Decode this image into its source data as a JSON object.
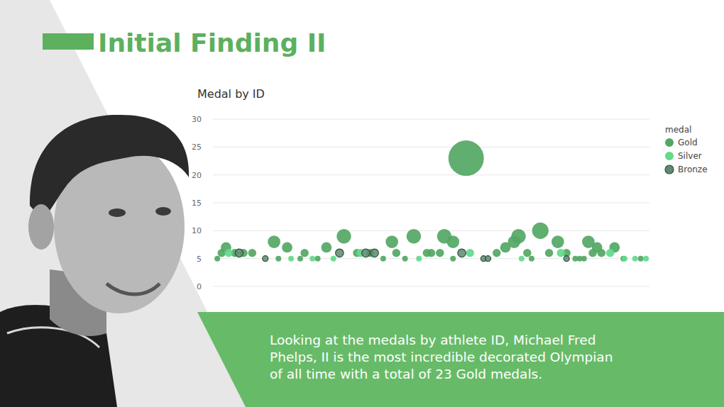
{
  "slide": {
    "title": "Initial Finding II",
    "caption": [
      "Looking at the medals by athlete ID, Michael Fred",
      "Phelps, II is the most incredible decorated Olympian",
      "of all time with a total of 23 Gold medals."
    ]
  },
  "chart_data": {
    "type": "bubble",
    "title": "Medal by ID",
    "legend_title": "medal",
    "legend": "top-right",
    "grid": true,
    "tick_labels": "y",
    "xlim": [
      0,
      100
    ],
    "ylim": [
      0,
      30
    ],
    "yticks": [
      0,
      5,
      10,
      15,
      20,
      25,
      30
    ],
    "series": [
      {
        "name": "Gold",
        "color": "#52a764",
        "x": [
          1,
          2,
          3,
          5,
          7,
          9,
          14,
          15,
          17,
          20,
          21,
          24,
          26,
          30,
          33,
          36,
          39,
          41,
          42,
          44,
          46,
          49,
          50,
          52,
          53,
          55,
          55,
          58,
          65,
          67,
          69,
          70,
          72,
          73,
          75,
          77,
          79,
          81,
          83,
          84,
          85,
          86,
          87,
          88,
          89,
          92,
          94,
          98
        ],
        "values": [
          5,
          6,
          7,
          6,
          6,
          6,
          8,
          5,
          7,
          5,
          6,
          5,
          7,
          9,
          6,
          6,
          5,
          8,
          6,
          5,
          9,
          6,
          6,
          6,
          9,
          5,
          8,
          23,
          6,
          7,
          8,
          9,
          6,
          5,
          10,
          6,
          8,
          6,
          5,
          5,
          5,
          8,
          6,
          7,
          6,
          7,
          5,
          5
        ],
        "sizes": [
          5,
          6,
          7,
          6,
          6,
          6,
          8,
          5,
          7,
          5,
          6,
          5,
          7,
          9,
          6,
          6,
          5,
          8,
          6,
          5,
          9,
          6,
          6,
          6,
          9,
          5,
          8,
          23,
          6,
          7,
          8,
          9,
          6,
          5,
          10,
          6,
          8,
          6,
          5,
          5,
          5,
          8,
          6,
          7,
          6,
          7,
          5,
          5
        ]
      },
      {
        "name": "Silver",
        "color": "#63d98c",
        "x": [
          3.6,
          17.9,
          22.8,
          27.6,
          33.8,
          47.2,
          58.9,
          70.7,
          79.7,
          91,
          94.3,
          96.7,
          99.2
        ],
        "values": [
          6,
          5,
          5,
          5,
          6,
          5,
          6,
          5,
          6,
          6,
          5,
          5,
          5
        ],
        "sizes": [
          6,
          5,
          5,
          5,
          6,
          5,
          6,
          5,
          6,
          6,
          5,
          5,
          5
        ]
      },
      {
        "name": "Bronze",
        "color": "#5d8a70",
        "x": [
          6,
          12,
          29,
          35,
          37,
          57,
          62,
          63,
          81
        ],
        "values": [
          6,
          5,
          6,
          6,
          6,
          6,
          5,
          5,
          5
        ],
        "sizes": [
          6,
          5,
          6,
          6,
          6,
          6,
          5,
          5,
          5
        ]
      }
    ]
  }
}
